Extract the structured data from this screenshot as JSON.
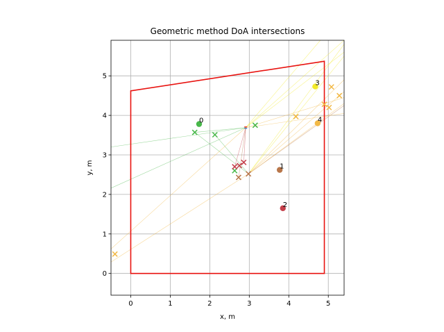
{
  "chart_data": {
    "type": "scatter",
    "title": "Geometric method DoA intersections",
    "xlabel": "x, m",
    "ylabel": "y, m",
    "xlim": [
      -0.5,
      5.4
    ],
    "ylim": [
      -0.55,
      5.9
    ],
    "xticks": [
      0,
      1,
      2,
      3,
      4,
      5
    ],
    "yticks": [
      0,
      1,
      2,
      3,
      4,
      5
    ],
    "grid": true,
    "room": {
      "color": "#e8120f",
      "polygon": [
        [
          0,
          0
        ],
        [
          0,
          4.62
        ],
        [
          4.9,
          5.37
        ],
        [
          4.9,
          0
        ]
      ]
    },
    "sources": [
      {
        "label": "0",
        "x": 1.73,
        "y": 3.78,
        "color": "#48b84a"
      },
      {
        "label": "1",
        "x": 3.77,
        "y": 2.62,
        "color": "#b8764a"
      },
      {
        "label": "2",
        "x": 3.85,
        "y": 1.65,
        "color": "#c43f4a"
      },
      {
        "label": "3",
        "x": 4.67,
        "y": 4.73,
        "color": "#f2ea2a"
      },
      {
        "label": "4",
        "x": 4.73,
        "y": 3.8,
        "color": "#f2b845"
      }
    ],
    "intersections": [
      {
        "x": 1.62,
        "y": 3.57,
        "color": "#48b84a"
      },
      {
        "x": 2.13,
        "y": 3.51,
        "color": "#48b84a"
      },
      {
        "x": 3.15,
        "y": 3.75,
        "color": "#48b84a"
      },
      {
        "x": 2.63,
        "y": 2.6,
        "color": "#48b84a"
      },
      {
        "x": 2.73,
        "y": 2.43,
        "color": "#b8764a"
      },
      {
        "x": 2.98,
        "y": 2.52,
        "color": "#b8764a"
      },
      {
        "x": 2.63,
        "y": 2.7,
        "color": "#c43f4a"
      },
      {
        "x": 2.75,
        "y": 2.73,
        "color": "#c43f4a"
      },
      {
        "x": 2.86,
        "y": 2.81,
        "color": "#c43f4a"
      },
      {
        "x": 4.18,
        "y": 3.97,
        "color": "#f2b845"
      },
      {
        "x": 4.9,
        "y": 4.28,
        "color": "#f2b845"
      },
      {
        "x": 5.02,
        "y": 4.2,
        "color": "#f2b845"
      },
      {
        "x": 5.08,
        "y": 4.72,
        "color": "#f2b845"
      },
      {
        "x": 5.28,
        "y": 4.5,
        "color": "#f2b845"
      },
      {
        "x": -0.4,
        "y": 0.49,
        "color": "#f2b845"
      }
    ],
    "mic_array": {
      "x": 2.91,
      "y": 3.69,
      "colors": [
        "#e8120f",
        "#2277cc"
      ]
    },
    "doa_lines": [
      {
        "color": "#48b84a",
        "x": [
          2.91,
          -0.5
        ],
        "y": [
          3.69,
          3.2
        ]
      },
      {
        "color": "#48b84a",
        "x": [
          2.91,
          -0.5
        ],
        "y": [
          3.69,
          2.16
        ]
      },
      {
        "color": "#48b84a",
        "x": [
          2.98,
          1.62
        ],
        "y": [
          2.52,
          3.57
        ]
      },
      {
        "color": "#48b84a",
        "x": [
          2.98,
          2.13
        ],
        "y": [
          2.52,
          3.51
        ]
      },
      {
        "color": "#48b84a",
        "x": [
          2.91,
          1.62
        ],
        "y": [
          3.69,
          3.57
        ]
      },
      {
        "color": "#b8764a",
        "x": [
          2.98,
          5.4
        ],
        "y": [
          2.52,
          4.25
        ]
      },
      {
        "color": "#b8764a",
        "x": [
          2.91,
          2.73
        ],
        "y": [
          3.69,
          2.43
        ]
      },
      {
        "color": "#c43f4a",
        "x": [
          2.91,
          2.63
        ],
        "y": [
          3.69,
          2.7
        ]
      },
      {
        "color": "#c43f4a",
        "x": [
          2.91,
          2.86
        ],
        "y": [
          3.69,
          2.81
        ]
      },
      {
        "color": "#f2ea2a",
        "x": [
          2.91,
          5.4
        ],
        "y": [
          3.69,
          5.9
        ]
      },
      {
        "color": "#f2ea2a",
        "x": [
          2.98,
          5.4
        ],
        "y": [
          2.52,
          5.8
        ]
      },
      {
        "color": "#f2ea2a",
        "x": [
          2.91,
          5.4
        ],
        "y": [
          3.69,
          5.6
        ]
      },
      {
        "color": "#f2ea2a",
        "x": [
          2.98,
          5.4
        ],
        "y": [
          2.52,
          5.5
        ]
      },
      {
        "color": "#f2ea2a",
        "x": [
          2.91,
          4.8
        ],
        "y": [
          3.69,
          5.9
        ]
      },
      {
        "color": "#f2b845",
        "x": [
          2.98,
          5.4
        ],
        "y": [
          2.52,
          4.6
        ]
      },
      {
        "color": "#f2b845",
        "x": [
          2.98,
          5.4
        ],
        "y": [
          2.52,
          4.9
        ]
      },
      {
        "color": "#f2b845",
        "x": [
          2.98,
          5.4
        ],
        "y": [
          2.52,
          4.3
        ]
      },
      {
        "color": "#f2b845",
        "x": [
          2.91,
          5.4
        ],
        "y": [
          3.69,
          4.05
        ]
      },
      {
        "color": "#f2b845",
        "x": [
          2.91,
          5.4
        ],
        "y": [
          3.69,
          4.45
        ]
      },
      {
        "color": "#f2b845",
        "x": [
          2.98,
          -0.5
        ],
        "y": [
          2.52,
          0.29
        ]
      },
      {
        "color": "#f2b845",
        "x": [
          2.91,
          -0.5
        ],
        "y": [
          3.69,
          0.62
        ]
      }
    ]
  }
}
